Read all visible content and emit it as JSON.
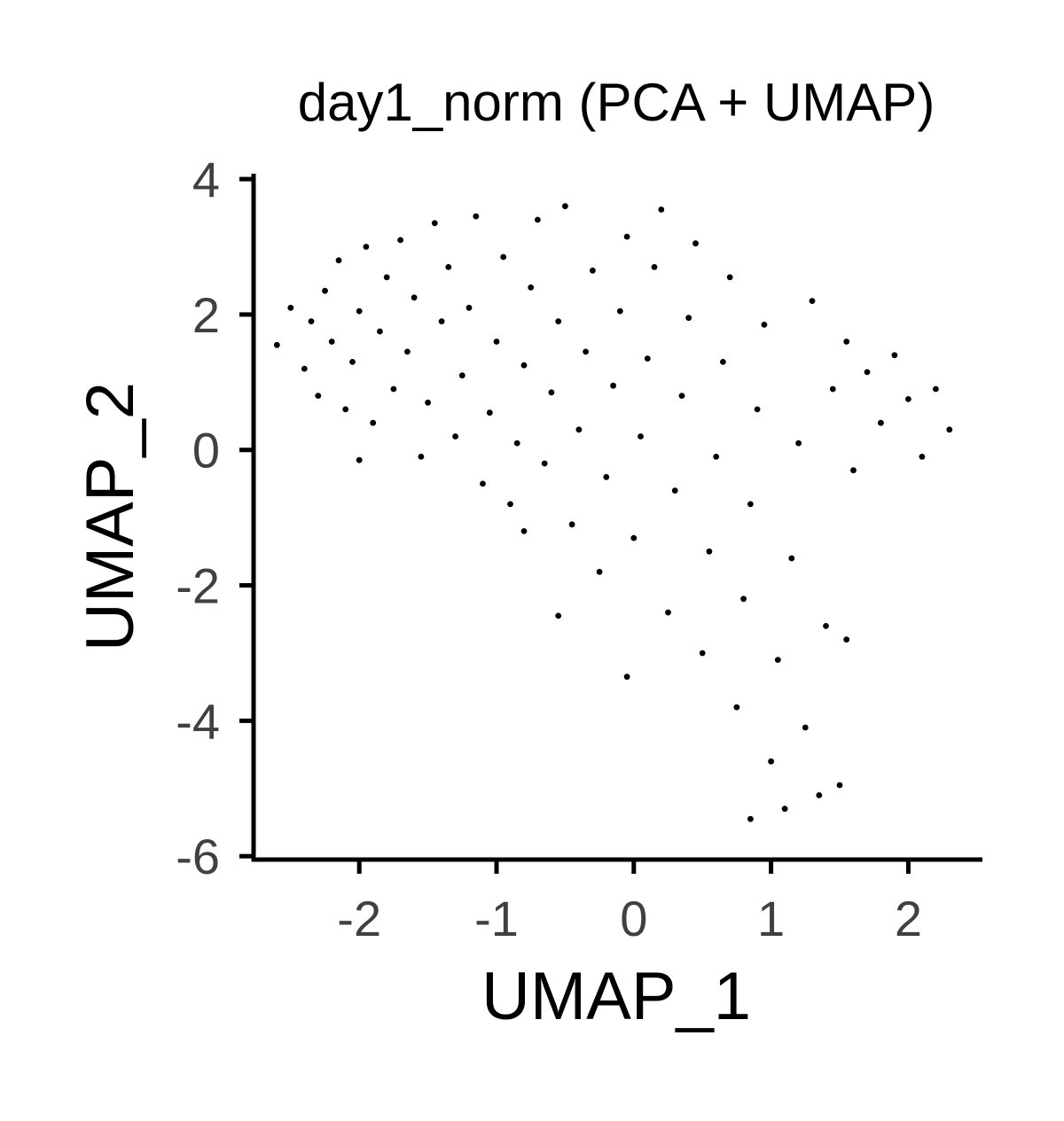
{
  "chart_data": {
    "type": "scatter",
    "title": "day1_norm (PCA + UMAP)",
    "xlabel": "UMAP_1",
    "ylabel": "UMAP_2",
    "xlim": [
      -2.77,
      2.54
    ],
    "ylim": [
      -6.05,
      4.08
    ],
    "x_ticks": [
      -2,
      -1,
      0,
      1,
      2
    ],
    "y_ticks": [
      -6,
      -4,
      -2,
      0,
      2,
      4
    ],
    "x_tick_labels": [
      "-2",
      "-1",
      "0",
      "1",
      "2"
    ],
    "y_tick_labels": [
      "-6",
      "-4",
      "-2",
      "0",
      "2",
      "4"
    ],
    "grid": false,
    "legend": "none",
    "point_color": "#000000",
    "axis_color": "#000000",
    "tick_label_color": "#404040",
    "series": [
      {
        "points": [
          [
            -2.6,
            1.55
          ],
          [
            -2.5,
            2.1
          ],
          [
            -2.4,
            1.2
          ],
          [
            -2.35,
            1.9
          ],
          [
            -2.3,
            0.8
          ],
          [
            -2.25,
            2.35
          ],
          [
            -2.2,
            1.6
          ],
          [
            -2.15,
            2.8
          ],
          [
            -2.1,
            0.6
          ],
          [
            -2.05,
            1.3
          ],
          [
            -2.0,
            2.05
          ],
          [
            -1.95,
            3.0
          ],
          [
            -1.9,
            0.4
          ],
          [
            -1.85,
            1.75
          ],
          [
            -1.8,
            2.55
          ],
          [
            -1.75,
            0.9
          ],
          [
            -1.7,
            3.1
          ],
          [
            -1.65,
            1.45
          ],
          [
            -1.6,
            2.25
          ],
          [
            -1.55,
            -0.1
          ],
          [
            -1.5,
            0.7
          ],
          [
            -1.45,
            3.35
          ],
          [
            -1.4,
            1.9
          ],
          [
            -1.35,
            2.7
          ],
          [
            -1.3,
            0.2
          ],
          [
            -1.25,
            1.1
          ],
          [
            -1.2,
            2.1
          ],
          [
            -1.15,
            3.45
          ],
          [
            -1.1,
            -0.5
          ],
          [
            -1.05,
            0.55
          ],
          [
            -1.0,
            1.6
          ],
          [
            -0.95,
            2.85
          ],
          [
            -0.9,
            -0.8
          ],
          [
            -0.85,
            0.1
          ],
          [
            -0.8,
            1.25
          ],
          [
            -0.75,
            2.4
          ],
          [
            -0.7,
            3.4
          ],
          [
            -0.65,
            -0.2
          ],
          [
            -0.6,
            0.85
          ],
          [
            -0.55,
            1.9
          ],
          [
            -0.5,
            3.6
          ],
          [
            -0.45,
            -1.1
          ],
          [
            -0.4,
            0.3
          ],
          [
            -0.35,
            1.45
          ],
          [
            -0.3,
            2.65
          ],
          [
            -0.25,
            -1.8
          ],
          [
            -0.2,
            -0.4
          ],
          [
            -0.15,
            0.95
          ],
          [
            -0.1,
            2.05
          ],
          [
            -0.05,
            3.15
          ],
          [
            0.0,
            -1.3
          ],
          [
            0.05,
            0.2
          ],
          [
            0.1,
            1.35
          ],
          [
            0.15,
            2.7
          ],
          [
            0.2,
            3.55
          ],
          [
            0.25,
            -2.4
          ],
          [
            0.3,
            -0.6
          ],
          [
            0.35,
            0.8
          ],
          [
            0.4,
            1.95
          ],
          [
            0.45,
            3.05
          ],
          [
            0.5,
            -3.0
          ],
          [
            0.55,
            -1.5
          ],
          [
            0.6,
            -0.1
          ],
          [
            0.65,
            1.3
          ],
          [
            0.7,
            2.55
          ],
          [
            0.75,
            -3.8
          ],
          [
            0.8,
            -2.2
          ],
          [
            0.85,
            -0.8
          ],
          [
            0.9,
            0.6
          ],
          [
            0.95,
            1.85
          ],
          [
            1.0,
            -4.6
          ],
          [
            1.05,
            -3.1
          ],
          [
            1.1,
            -5.3
          ],
          [
            1.15,
            -1.6
          ],
          [
            1.2,
            0.1
          ],
          [
            1.25,
            -4.1
          ],
          [
            1.3,
            2.2
          ],
          [
            1.35,
            -5.1
          ],
          [
            1.4,
            -2.6
          ],
          [
            1.45,
            0.9
          ],
          [
            1.5,
            -4.95
          ],
          [
            1.55,
            1.6
          ],
          [
            1.6,
            -0.3
          ],
          [
            1.7,
            1.15
          ],
          [
            1.8,
            0.4
          ],
          [
            1.9,
            1.4
          ],
          [
            2.0,
            0.75
          ],
          [
            2.1,
            -0.1
          ],
          [
            2.2,
            0.9
          ],
          [
            2.3,
            0.3
          ],
          [
            -2.0,
            -0.15
          ],
          [
            -0.8,
            -1.2
          ],
          [
            -0.55,
            -2.45
          ],
          [
            -0.05,
            -3.35
          ],
          [
            1.55,
            -2.8
          ],
          [
            0.85,
            -5.45
          ]
        ]
      }
    ]
  }
}
